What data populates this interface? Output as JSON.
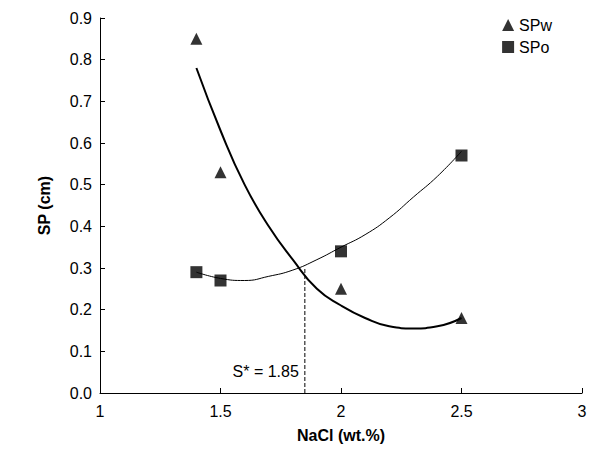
{
  "chart_data": {
    "type": "scatter",
    "x_label": "NaCl (wt.%)",
    "y_label": "SP (cm)",
    "xlim": [
      1,
      3
    ],
    "xticks": [
      1,
      1.5,
      2,
      2.5,
      3
    ],
    "ylim": [
      0,
      0.9
    ],
    "yticks": [
      {
        "value": 0,
        "label": "0.0"
      },
      0.1,
      0.2,
      0.3,
      0.4,
      0.5,
      0.6,
      0.7,
      0.8,
      0.9
    ],
    "grid": false,
    "legend": "upper right",
    "series": [
      {
        "name": "SPw",
        "color": "#000000",
        "marker": "triangle",
        "x": [
          1.4,
          1.5,
          2.0,
          2.5
        ],
        "values": [
          0.85,
          0.53,
          0.25,
          0.18
        ]
      },
      {
        "name": "SPo",
        "color": "#000000",
        "marker": "square",
        "x": [
          1.4,
          1.5,
          2.0,
          2.5
        ],
        "values": [
          0.29,
          0.27,
          0.34,
          0.57
        ]
      }
    ],
    "trendlines": [
      {
        "color": "#000000",
        "x": [
          1.4,
          1.5,
          1.6,
          1.7,
          1.8,
          1.9,
          2.0,
          2.1,
          2.2,
          2.3,
          2.4,
          2.5
        ],
        "values": [
          0.78,
          0.63,
          0.5,
          0.4,
          0.32,
          0.25,
          0.21,
          0.18,
          0.16,
          0.155,
          0.16,
          0.18
        ]
      },
      {
        "color": "#000000",
        "x": [
          1.4,
          1.5,
          1.6,
          1.7,
          1.8,
          1.9,
          2.0,
          2.1,
          2.2,
          2.3,
          2.4,
          2.5
        ],
        "values": [
          0.29,
          0.275,
          0.27,
          0.28,
          0.295,
          0.32,
          0.35,
          0.38,
          0.42,
          0.47,
          0.52,
          0.58
        ]
      }
    ],
    "annotation": {
      "text": "S* = 1.85",
      "x": 1.85,
      "y": 0.3,
      "line_style": "dashed"
    }
  }
}
